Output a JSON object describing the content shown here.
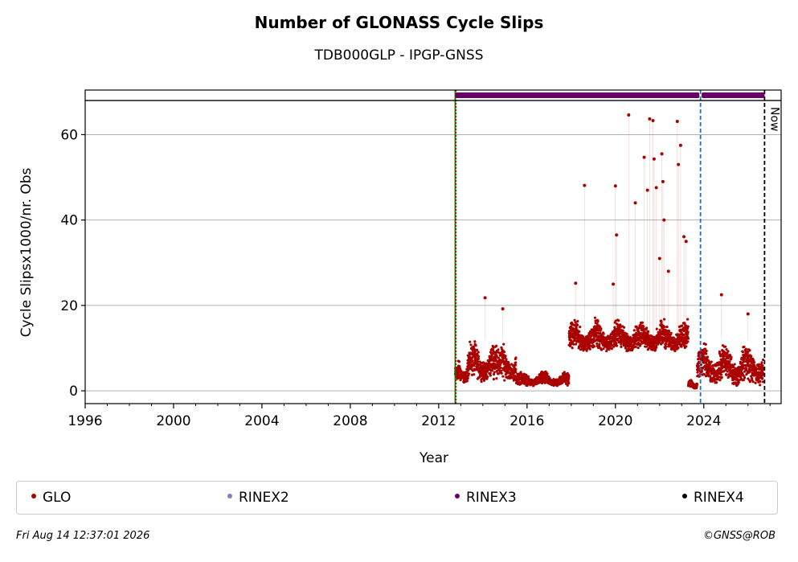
{
  "chart_data": {
    "type": "scatter",
    "title": "Number of GLONASS Cycle Slips",
    "subtitle": "TDB000GLP - IPGP-GNSS",
    "xlabel": "Year",
    "ylabel": "Cycle Slipsx1000/nr. Obs",
    "xlim": [
      1996,
      2027.5
    ],
    "ylim": [
      -3,
      68
    ],
    "xticks": [
      1996,
      2000,
      2004,
      2008,
      2012,
      2016,
      2020,
      2024
    ],
    "xtick_labels": [
      "1996",
      "2000",
      "2004",
      "2008",
      "2012",
      "2016",
      "2020",
      "2024"
    ],
    "yticks": [
      0,
      20,
      40,
      60
    ],
    "ytick_labels": [
      "0",
      "20",
      "40",
      "60"
    ],
    "grid": "horizontal",
    "legend_position": "bottom",
    "series": [
      {
        "name": "GLO",
        "color": "#aa0000",
        "segments": [
          {
            "x_start": 2012.75,
            "x_end": 2013.3,
            "low": 1.5,
            "high": 8
          },
          {
            "x_start": 2013.3,
            "x_end": 2014.7,
            "low": 2,
            "high": 13
          },
          {
            "x_start": 2014.7,
            "x_end": 2015.5,
            "low": 2,
            "high": 12
          },
          {
            "x_start": 2015.5,
            "x_end": 2017.9,
            "low": 1,
            "high": 5
          },
          {
            "x_start": 2017.9,
            "x_end": 2023.3,
            "low": 9,
            "high": 18
          },
          {
            "x_start": 2023.3,
            "x_end": 2023.7,
            "low": 0.5,
            "high": 3
          },
          {
            "x_start": 2023.7,
            "x_end": 2026.7,
            "low": 1,
            "high": 13
          }
        ],
        "outliers": [
          {
            "x": 2014.1,
            "y": 21.8
          },
          {
            "x": 2014.9,
            "y": 19.2
          },
          {
            "x": 2018.2,
            "y": 25.2
          },
          {
            "x": 2018.6,
            "y": 48.1
          },
          {
            "x": 2019.9,
            "y": 25.0
          },
          {
            "x": 2020.0,
            "y": 48.0
          },
          {
            "x": 2020.05,
            "y": 36.5
          },
          {
            "x": 2020.6,
            "y": 64.6
          },
          {
            "x": 2020.9,
            "y": 44.0
          },
          {
            "x": 2021.3,
            "y": 54.7
          },
          {
            "x": 2021.45,
            "y": 47.0
          },
          {
            "x": 2021.55,
            "y": 63.7
          },
          {
            "x": 2021.7,
            "y": 63.3
          },
          {
            "x": 2021.75,
            "y": 54.3
          },
          {
            "x": 2021.85,
            "y": 47.6
          },
          {
            "x": 2022.0,
            "y": 31.0
          },
          {
            "x": 2022.1,
            "y": 55.5
          },
          {
            "x": 2022.15,
            "y": 49.0
          },
          {
            "x": 2022.2,
            "y": 40.0
          },
          {
            "x": 2022.4,
            "y": 28.0
          },
          {
            "x": 2022.8,
            "y": 63.1
          },
          {
            "x": 2022.85,
            "y": 53.0
          },
          {
            "x": 2022.95,
            "y": 57.5
          },
          {
            "x": 2023.1,
            "y": 36.1
          },
          {
            "x": 2023.2,
            "y": 35.0
          },
          {
            "x": 2024.8,
            "y": 22.5
          },
          {
            "x": 2026.0,
            "y": 18.0
          }
        ]
      },
      {
        "name": "RINEX2",
        "color": "#8080c0"
      },
      {
        "name": "RINEX3",
        "color": "#660066",
        "coverage": [
          [
            2012.75,
            2023.8
          ],
          [
            2023.9,
            2026.75
          ]
        ]
      },
      {
        "name": "RINEX4",
        "color": "#110011"
      }
    ],
    "vertical_lines": [
      {
        "x": 2012.75,
        "color": "#008000",
        "style": "solid"
      },
      {
        "x": 2012.78,
        "color": "#cc0000",
        "style": "dotted"
      },
      {
        "x": 2023.85,
        "color": "#1f6fd0",
        "style": "dashed"
      },
      {
        "x": 2026.75,
        "color": "#000000",
        "style": "dashed",
        "label": "Now"
      }
    ]
  },
  "footer": {
    "timestamp": "Fri Aug 14 12:37:01 2026",
    "copyright": "©GNSS@ROB"
  }
}
